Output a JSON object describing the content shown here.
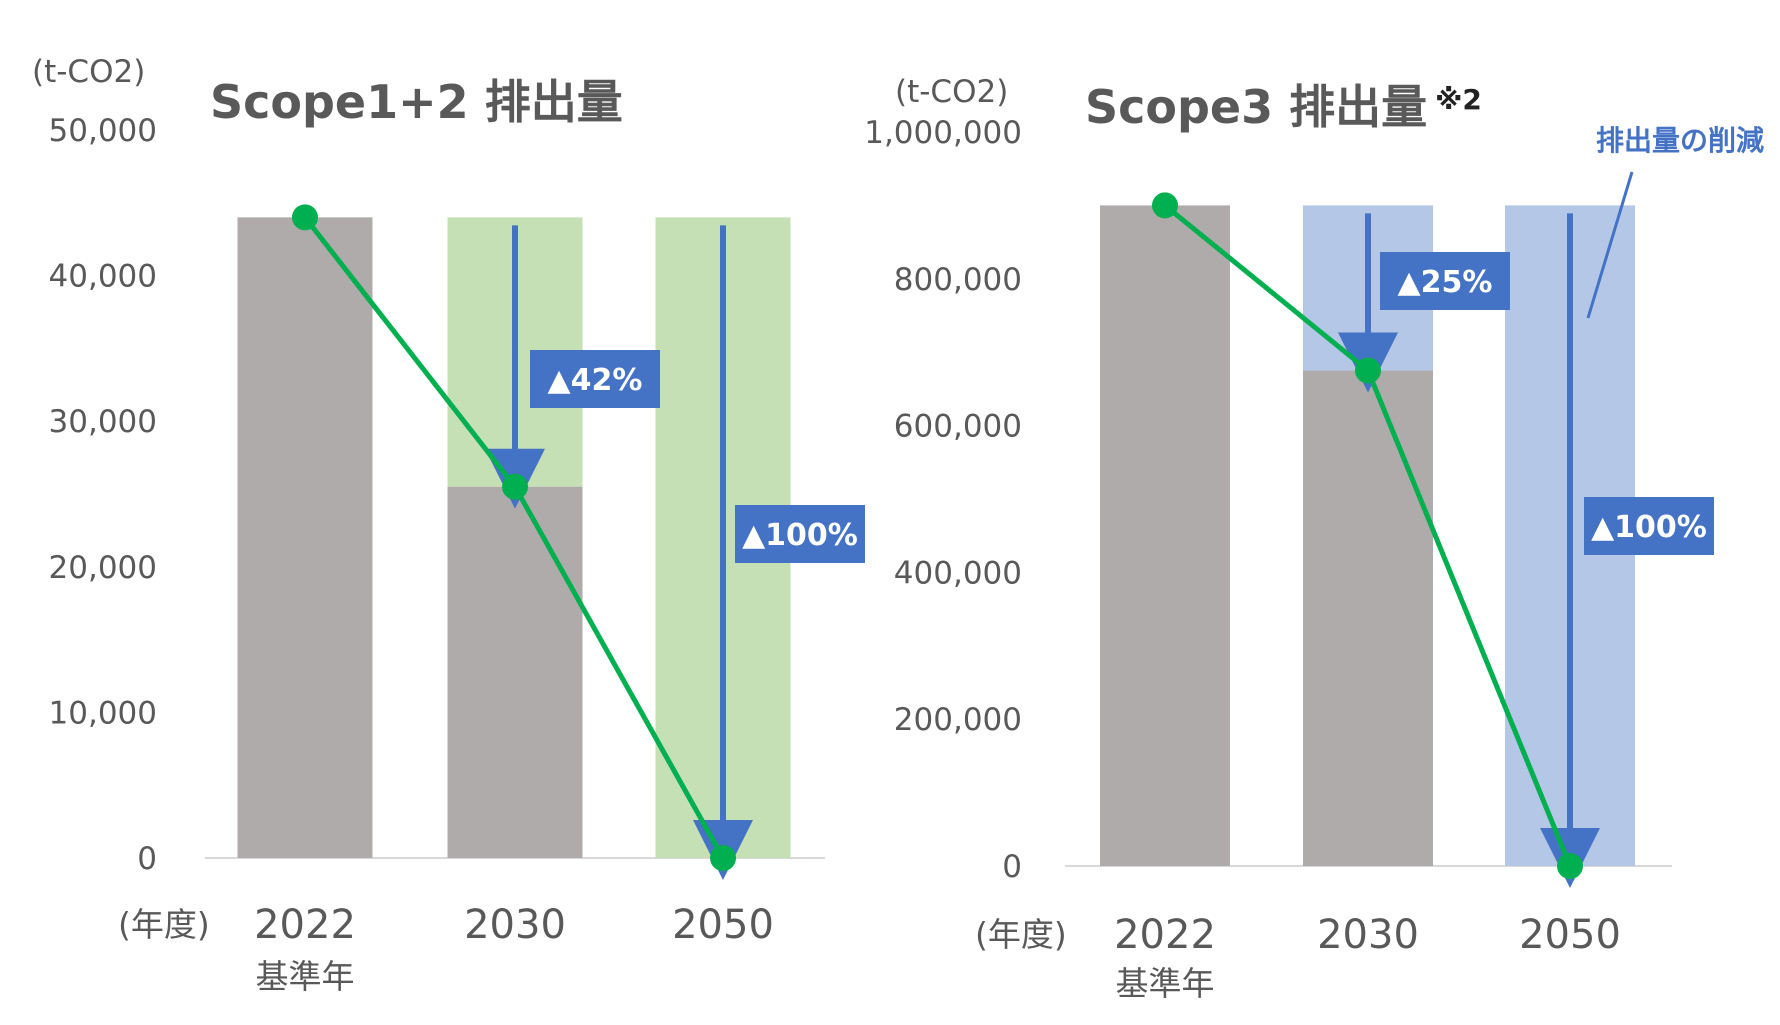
{
  "chart_data": [
    {
      "type": "bar",
      "title": "Scope1+2 排出量",
      "unit": "(t-CO2)",
      "x_prefix": "(年度)",
      "categories": [
        "2022",
        "2030",
        "2050"
      ],
      "category_sublabels": [
        "基準年",
        "",
        ""
      ],
      "ylim": [
        0,
        50000
      ],
      "yticks": [
        "0",
        "10,000",
        "20,000",
        "30,000",
        "40,000",
        "50,000"
      ],
      "baseline": 44000,
      "series": [
        {
          "values": [
            44000,
            25500,
            0
          ]
        }
      ],
      "reduction_labels": [
        "",
        "▲42%",
        "▲100%"
      ],
      "colors": {
        "bar": "#afabab",
        "reduction": "#c5e0b4",
        "line": "#00b050",
        "arrow": "#4472c4"
      }
    },
    {
      "type": "bar",
      "title": "Scope3 排出量",
      "title_note": "※2",
      "unit": "(t-CO2)",
      "x_prefix": "(年度)",
      "categories": [
        "2022",
        "2030",
        "2050"
      ],
      "category_sublabels": [
        "基準年",
        "",
        ""
      ],
      "ylim": [
        0,
        1000000
      ],
      "yticks": [
        "0",
        "200,000",
        "400,000",
        "600,000",
        "800,000",
        "1,000,000"
      ],
      "baseline": 900000,
      "series": [
        {
          "values": [
            900000,
            675000,
            0
          ]
        }
      ],
      "reduction_labels": [
        "",
        "▲25%",
        "▲100%"
      ],
      "annotation": "排出量の削減",
      "colors": {
        "bar": "#afabab",
        "reduction": "#b4c7e7",
        "line": "#00b050",
        "arrow": "#4472c4"
      }
    }
  ]
}
